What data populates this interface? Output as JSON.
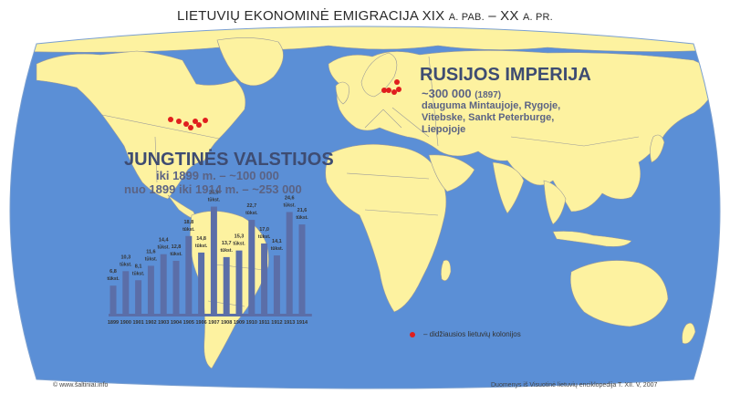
{
  "title": {
    "part1": "LIETUVIŲ EKONOMINĖ EMIGRACIJA XIX",
    "part2": "A. PAB.",
    "part3": "– XX",
    "part4": "A. PR."
  },
  "usa": {
    "heading": "JUNGTINĖS VALSTIJOS",
    "line1": "iki 1899 m. – ~100 000",
    "line2": "nuo 1899 iki 1914 m. – ~253 000"
  },
  "russia": {
    "heading": "RUSIJOS IMPERIJA",
    "count": "~300 000",
    "count_year": "(1897)",
    "detail1": "dauguma Mintaujoje, Rygoje,",
    "detail2": "Vitebske, Sankt Peterburge,",
    "detail3": "Liepojoje"
  },
  "legend": {
    "label": "– didžiausios lietuvių kolonijos",
    "color": "#e01e1e"
  },
  "footer": {
    "left": "© www.šaltiniai.info",
    "right": "Duomenys iš Visuotinė lietuvių enciklopedija T. XII. V, 2007"
  },
  "colors": {
    "ocean": "#5b8fd6",
    "land": "#fdf2a0",
    "border": "#9a9a9a",
    "bar": "#5b6ea8"
  },
  "chart_data": {
    "type": "bar",
    "categories": [
      "1899",
      "1900",
      "1901",
      "1902",
      "1903",
      "1904",
      "1905",
      "1906",
      "1907",
      "1908",
      "1909",
      "1910",
      "1911",
      "1912",
      "1913",
      "1914"
    ],
    "values": [
      6.8,
      10.3,
      8.1,
      11.6,
      14.4,
      12.8,
      18.8,
      14.8,
      25.9,
      13.7,
      15.3,
      22.7,
      17.0,
      14.1,
      24.6,
      21.6
    ],
    "value_labels": [
      "6,8",
      "10,3",
      "8,1",
      "11,6",
      "14,4",
      "12,8",
      "18,8",
      "14,8",
      "25,9",
      "13,7",
      "15,3",
      "22,7",
      "17,0",
      "14,1",
      "24,6",
      "21,6"
    ],
    "unit_label": "tūkst.",
    "ylim": [
      0,
      30
    ]
  }
}
